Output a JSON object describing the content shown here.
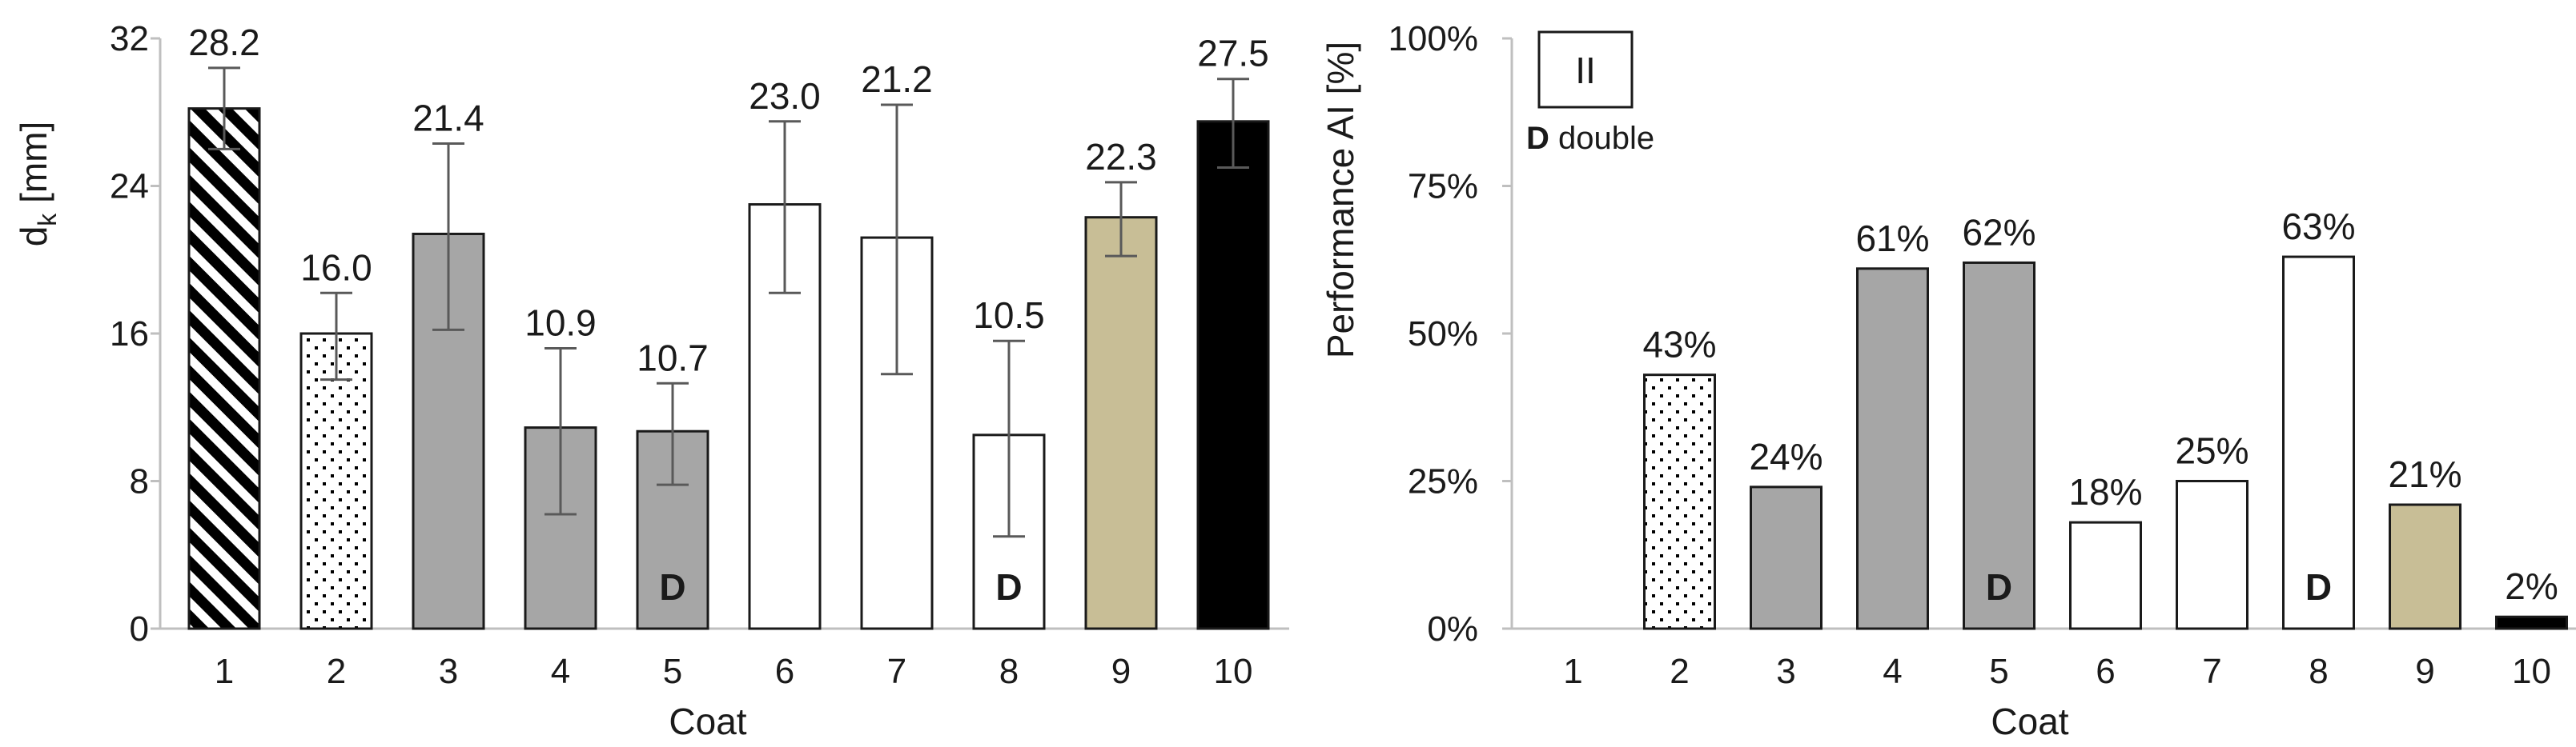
{
  "chart_data": [
    {
      "type": "bar",
      "categories": [
        "1",
        "2",
        "3",
        "4",
        "5",
        "6",
        "7",
        "8",
        "9",
        "10"
      ],
      "values": [
        28.2,
        16.0,
        21.4,
        10.9,
        10.7,
        23.0,
        21.2,
        10.5,
        22.3,
        27.5
      ],
      "value_labels": [
        "28.2",
        "16.0",
        "21.4",
        "10.9",
        "10.7",
        "23.0",
        "21.2",
        "10.5",
        "22.3",
        "27.5"
      ],
      "error_low": [
        26.0,
        13.5,
        16.2,
        6.2,
        7.8,
        18.2,
        13.8,
        5.0,
        20.2,
        25.0
      ],
      "error_high": [
        30.4,
        18.2,
        26.3,
        15.2,
        13.3,
        27.5,
        28.4,
        15.6,
        24.2,
        29.8
      ],
      "double_marks": [
        false,
        false,
        false,
        false,
        true,
        false,
        false,
        true,
        false,
        false
      ],
      "fills": [
        "hatch",
        "dots",
        "#a6a6a6",
        "#a6a6a6",
        "#a6a6a6",
        "#ffffff",
        "#ffffff",
        "#ffffff",
        "#c8be96",
        "#000000"
      ],
      "ylim": [
        0,
        32
      ],
      "yticks": [
        "0",
        "8",
        "16",
        "24",
        "32"
      ],
      "xlabel": "Coat",
      "ylabel_main": "d",
      "ylabel_sub": "k",
      "ylabel_unit": " [mm]"
    },
    {
      "type": "bar",
      "categories": [
        "1",
        "2",
        "3",
        "4",
        "5",
        "6",
        "7",
        "8",
        "9",
        "10"
      ],
      "values": [
        0,
        43,
        24,
        61,
        62,
        18,
        25,
        63,
        21,
        2
      ],
      "value_labels": [
        "",
        "43%",
        "24%",
        "61%",
        "62%",
        "18%",
        "25%",
        "63%",
        "21%",
        "2%"
      ],
      "double_marks": [
        false,
        false,
        false,
        false,
        true,
        false,
        false,
        true,
        false,
        false
      ],
      "fills": [
        "#ffffff",
        "dots",
        "#a6a6a6",
        "#a6a6a6",
        "#a6a6a6",
        "#ffffff",
        "#ffffff",
        "#ffffff",
        "#c8be96",
        "#000000"
      ],
      "ylim": [
        0,
        100
      ],
      "yticks": [
        "0%",
        "25%",
        "50%",
        "75%",
        "100%"
      ],
      "xlabel": "Coat",
      "ylabel": "Performance AI [%]",
      "panel_label": "II",
      "legend_mark": "D",
      "legend_text": " double"
    }
  ],
  "double_mark": "D",
  "colors": {
    "gray": "#a6a6a6",
    "beige": "#c8be96",
    "black": "#000000",
    "outline": "#1a1a1a",
    "axis": "#bfbfbf",
    "error_bar": "#595959"
  }
}
